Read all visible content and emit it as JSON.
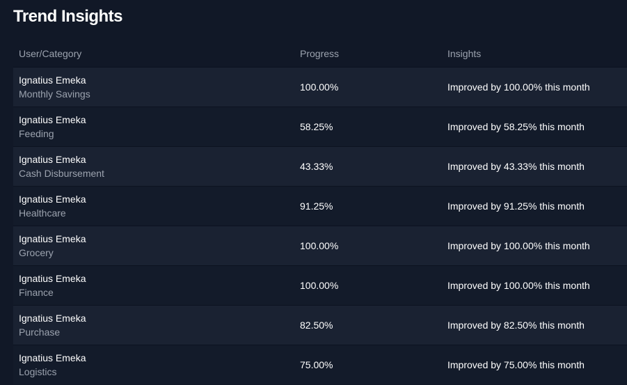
{
  "title": "Trend Insights",
  "columns": {
    "user_category": "User/Category",
    "progress": "Progress",
    "insights": "Insights"
  },
  "rows": [
    {
      "user": "Ignatius Emeka",
      "category": "Monthly Savings",
      "progress": "100.00%",
      "insight": "Improved by 100.00% this month"
    },
    {
      "user": "Ignatius Emeka",
      "category": "Feeding",
      "progress": "58.25%",
      "insight": "Improved by 58.25% this month"
    },
    {
      "user": "Ignatius Emeka",
      "category": "Cash Disbursement",
      "progress": "43.33%",
      "insight": "Improved by 43.33% this month"
    },
    {
      "user": "Ignatius Emeka",
      "category": "Healthcare",
      "progress": "91.25%",
      "insight": "Improved by 91.25% this month"
    },
    {
      "user": "Ignatius Emeka",
      "category": "Grocery",
      "progress": "100.00%",
      "insight": "Improved by 100.00% this month"
    },
    {
      "user": "Ignatius Emeka",
      "category": "Finance",
      "progress": "100.00%",
      "insight": "Improved by 100.00% this month"
    },
    {
      "user": "Ignatius Emeka",
      "category": "Purchase",
      "progress": "82.50%",
      "insight": "Improved by 82.50% this month"
    },
    {
      "user": "Ignatius Emeka",
      "category": "Logistics",
      "progress": "75.00%",
      "insight": "Improved by 75.00% this month"
    }
  ]
}
